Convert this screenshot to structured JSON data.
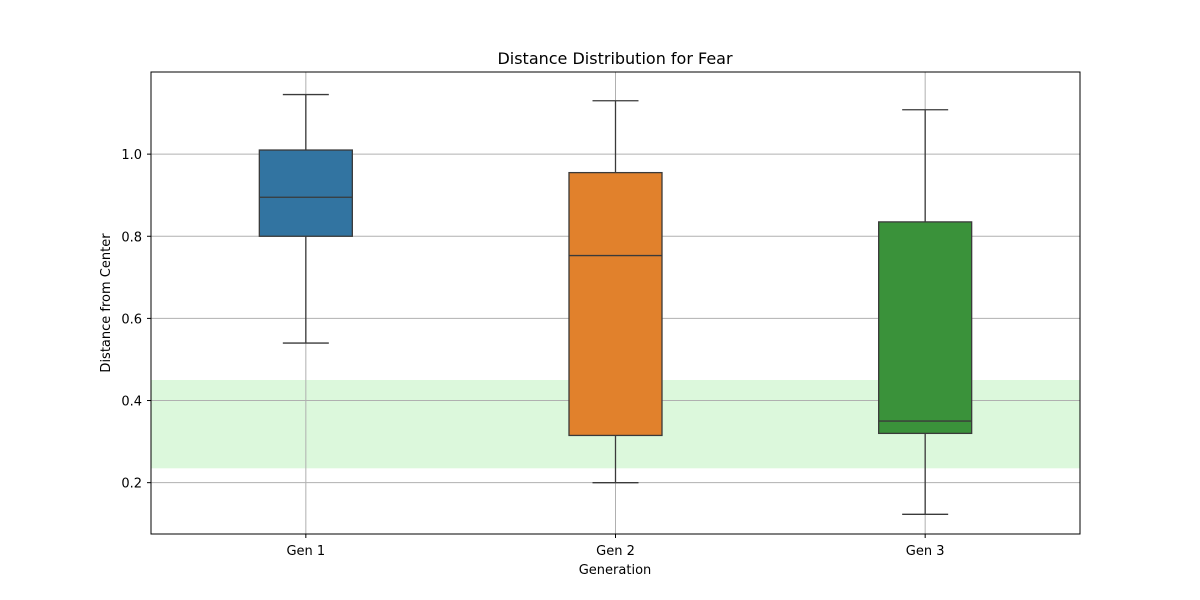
{
  "chart_data": {
    "type": "box",
    "title": "Distance Distribution for Fear",
    "xlabel": "Generation",
    "ylabel": "Distance from Center",
    "ylim": [
      0.075,
      1.2
    ],
    "yticks": [
      0.2,
      0.4,
      0.6,
      0.8,
      1.0
    ],
    "ytick_labels": [
      "0.2",
      "0.4",
      "0.6",
      "0.8",
      "1.0"
    ],
    "grid": true,
    "categories": [
      "Gen 1",
      "Gen 2",
      "Gen 3"
    ],
    "boxes": [
      {
        "category": "Gen 1",
        "whisker_low": 0.54,
        "q1": 0.8,
        "median": 0.895,
        "q3": 1.01,
        "whisker_high": 1.145,
        "color": "#3274a1"
      },
      {
        "category": "Gen 2",
        "whisker_low": 0.2,
        "q1": 0.315,
        "median": 0.753,
        "q3": 0.955,
        "whisker_high": 1.13,
        "color": "#e1812c"
      },
      {
        "category": "Gen 3",
        "whisker_low": 0.123,
        "q1": 0.32,
        "median": 0.35,
        "q3": 0.835,
        "whisker_high": 1.108,
        "color": "#3a923a"
      }
    ],
    "shaded_band": {
      "y_low": 0.235,
      "y_high": 0.45,
      "color": "#dcf8dc"
    }
  }
}
